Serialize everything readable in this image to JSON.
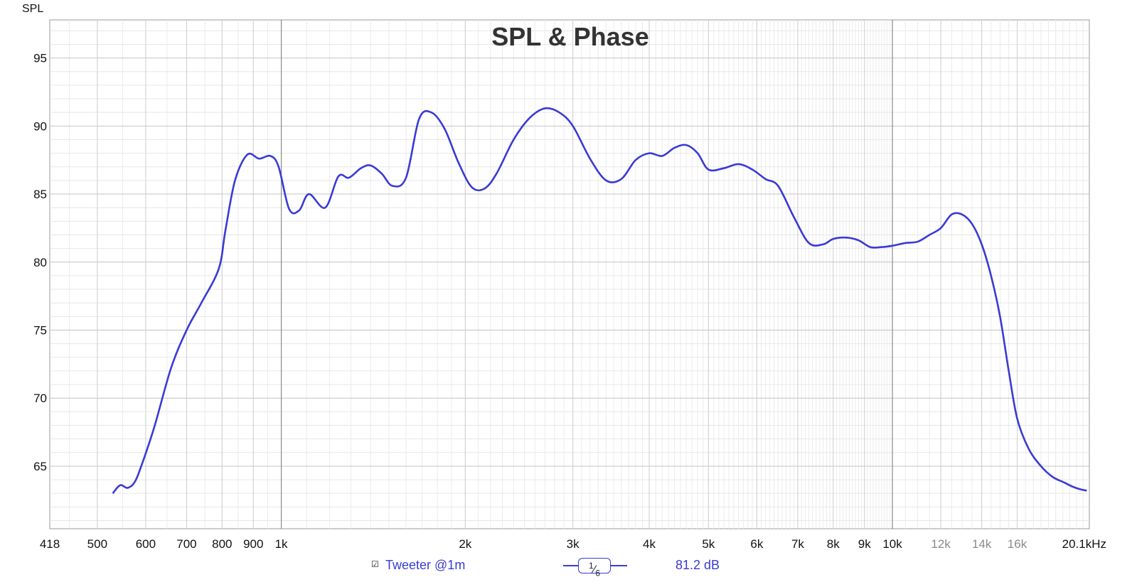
{
  "chart_data": {
    "type": "line",
    "title": "SPL & Phase",
    "ylabel": "SPL",
    "xlabel": "",
    "x_unit": "kHz",
    "x_scale": "log",
    "xlim": [
      418,
      21000
    ],
    "ylim": [
      60.4,
      97.8
    ],
    "grid": true,
    "y_ticks": [
      65,
      70,
      75,
      80,
      85,
      90,
      95
    ],
    "x_tick_labels": [
      {
        "f": 418,
        "label": "418"
      },
      {
        "f": 500,
        "label": "500"
      },
      {
        "f": 600,
        "label": "600"
      },
      {
        "f": 700,
        "label": "700"
      },
      {
        "f": 800,
        "label": "800"
      },
      {
        "f": 900,
        "label": "900"
      },
      {
        "f": 1000,
        "label": "1k"
      },
      {
        "f": 2000,
        "label": "2k"
      },
      {
        "f": 3000,
        "label": "3k"
      },
      {
        "f": 4000,
        "label": "4k"
      },
      {
        "f": 5000,
        "label": "5k"
      },
      {
        "f": 6000,
        "label": "6k"
      },
      {
        "f": 7000,
        "label": "7k"
      },
      {
        "f": 8000,
        "label": "8k"
      },
      {
        "f": 9000,
        "label": "9k"
      },
      {
        "f": 10000,
        "label": "10k"
      },
      {
        "f": 12000,
        "label": "12k",
        "muted": true
      },
      {
        "f": 14000,
        "label": "14k",
        "muted": true
      },
      {
        "f": 16000,
        "label": "16k",
        "muted": true
      },
      {
        "f": 20100,
        "label": "20.1kHz"
      }
    ],
    "series": [
      {
        "name": "Tweeter @1m",
        "color": "#3a3ad6",
        "x": [
          530,
          545,
          560,
          575,
          590,
          620,
          660,
          700,
          740,
          790,
          810,
          840,
          880,
          920,
          960,
          990,
          1030,
          1070,
          1110,
          1180,
          1240,
          1290,
          1350,
          1400,
          1460,
          1520,
          1600,
          1680,
          1760,
          1850,
          1950,
          2050,
          2150,
          2250,
          2400,
          2550,
          2700,
          2850,
          3000,
          3200,
          3400,
          3600,
          3800,
          4000,
          4200,
          4400,
          4600,
          4800,
          5000,
          5300,
          5600,
          5900,
          6200,
          6500,
          6900,
          7300,
          7700,
          8000,
          8400,
          8800,
          9200,
          9600,
          10000,
          10500,
          11000,
          11500,
          12000,
          12500,
          13000,
          13500,
          14000,
          14500,
          15000,
          15500,
          16000,
          16700,
          17500,
          18300,
          19100,
          19700,
          20300,
          20800
        ],
        "y": [
          63.0,
          63.6,
          63.4,
          63.8,
          65.0,
          67.9,
          72.2,
          75.0,
          77.0,
          79.5,
          82.3,
          86.0,
          87.9,
          87.6,
          87.8,
          87.0,
          83.9,
          83.8,
          85.0,
          84.0,
          86.3,
          86.2,
          86.9,
          87.1,
          86.5,
          85.6,
          86.2,
          90.5,
          91.0,
          89.8,
          87.3,
          85.5,
          85.4,
          86.5,
          89.0,
          90.6,
          91.3,
          91.0,
          90.0,
          87.6,
          86.0,
          86.1,
          87.5,
          88.0,
          87.8,
          88.4,
          88.6,
          88.0,
          86.8,
          86.9,
          87.2,
          86.8,
          86.1,
          85.6,
          83.3,
          81.4,
          81.3,
          81.7,
          81.8,
          81.6,
          81.1,
          81.1,
          81.2,
          81.4,
          81.5,
          82.0,
          82.5,
          83.5,
          83.5,
          82.8,
          81.3,
          79.0,
          76.0,
          72.0,
          68.5,
          66.3,
          65.0,
          64.2,
          63.8,
          63.5,
          63.3,
          63.2
        ]
      }
    ]
  },
  "legend": {
    "checkbox": "☑",
    "series_label": "Tweeter @1m",
    "smoothing_num": "1",
    "smoothing_den": "6",
    "value": "81.2 dB"
  }
}
